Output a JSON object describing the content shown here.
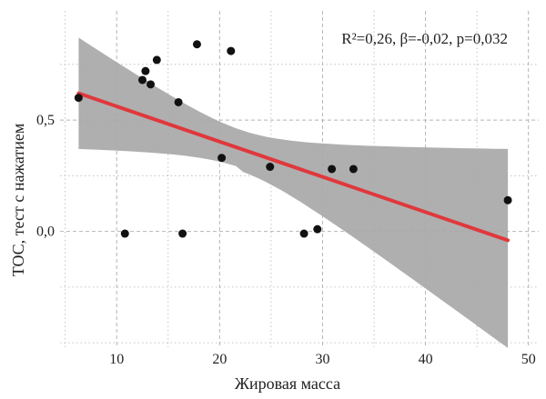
{
  "chart_data": {
    "type": "scatter",
    "title": "",
    "xlabel": "Жировая масса",
    "ylabel": "ТОС, тест с нажатием",
    "annotation": "R²=0,26, β=-0,02, p=0,032",
    "xlim": [
      4.5,
      51
    ],
    "ylim": [
      -0.52,
      0.99
    ],
    "x_ticks": [
      10,
      20,
      30,
      40,
      50
    ],
    "x_tick_labels": [
      "10",
      "20",
      "30",
      "40",
      "50"
    ],
    "y_ticks": [
      0.0,
      0.5
    ],
    "y_tick_labels": [
      "0,0",
      "0,5"
    ],
    "grid": true,
    "colors": {
      "points": "#111111",
      "fit_line": "#e0383c",
      "confidence_band": "#a8a8a8",
      "grid": "#b5b5b5"
    },
    "points": [
      {
        "x": 6.3,
        "y": 0.6
      },
      {
        "x": 10.8,
        "y": -0.01
      },
      {
        "x": 12.5,
        "y": 0.68
      },
      {
        "x": 12.8,
        "y": 0.72
      },
      {
        "x": 13.3,
        "y": 0.66
      },
      {
        "x": 13.9,
        "y": 0.77
      },
      {
        "x": 16.0,
        "y": 0.58
      },
      {
        "x": 16.4,
        "y": -0.01
      },
      {
        "x": 17.8,
        "y": 0.84
      },
      {
        "x": 20.2,
        "y": 0.33
      },
      {
        "x": 21.1,
        "y": 0.81
      },
      {
        "x": 24.9,
        "y": 0.29
      },
      {
        "x": 28.2,
        "y": -0.01
      },
      {
        "x": 29.5,
        "y": 0.01
      },
      {
        "x": 30.9,
        "y": 0.28
      },
      {
        "x": 33.0,
        "y": 0.28
      },
      {
        "x": 48.0,
        "y": 0.14
      }
    ],
    "fit_line": {
      "x": [
        6.3,
        48.0
      ],
      "y": [
        0.62,
        -0.04
      ]
    },
    "confidence_band": {
      "x": [
        6.3,
        48.0
      ],
      "upper": [
        0.87,
        0.37
      ],
      "lower": [
        0.38,
        -0.44
      ]
    }
  }
}
